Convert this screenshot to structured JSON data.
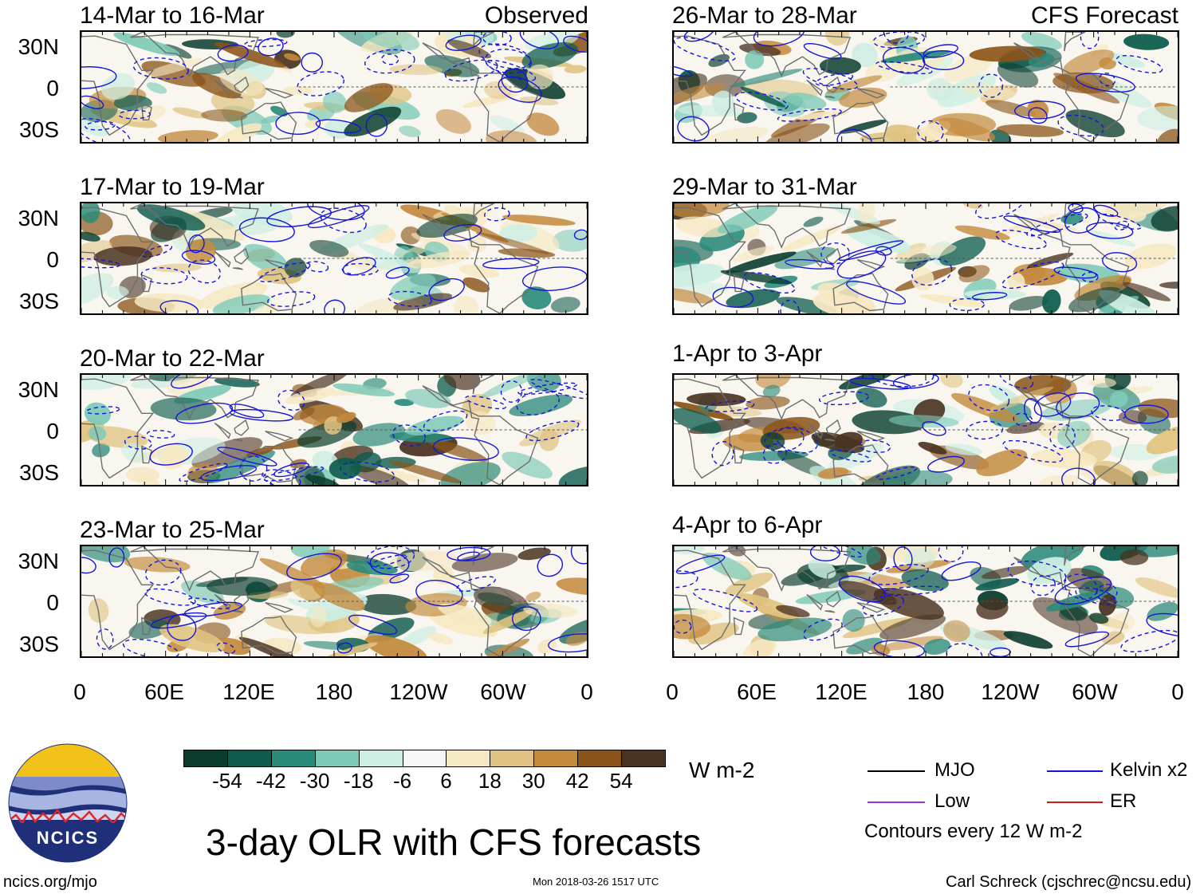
{
  "title": "3-day OLR with CFS forecasts",
  "source_site": "ncics.org/mjo",
  "timestamp": "Mon 2018-03-26 1517 UTC",
  "author": "Carl Schreck (cjschrec@ncsu.edu)",
  "logo_text": "NCICS",
  "units": "W m-2",
  "contour_note": "Contours every 12 W m-2",
  "chart_data": {
    "type": "heatmap",
    "variable": "OLR anomaly",
    "lat_ticks": [
      "30N",
      "0",
      "30S"
    ],
    "lon_ticks": [
      "0",
      "60E",
      "120E",
      "180",
      "120W",
      "60W",
      "0"
    ],
    "observed": {
      "label": "Observed",
      "panels": [
        "14-Mar to 16-Mar",
        "17-Mar to 19-Mar",
        "20-Mar to 22-Mar",
        "23-Mar to 25-Mar"
      ]
    },
    "forecast": {
      "label": "CFS Forecast",
      "panels": [
        "26-Mar to 28-Mar",
        "29-Mar to 31-Mar",
        "1-Apr to 3-Apr",
        "4-Apr to 6-Apr"
      ]
    },
    "colorbar": {
      "labels": [
        "-54",
        "-42",
        "-30",
        "-18",
        "-6",
        "6",
        "18",
        "30",
        "42",
        "54"
      ],
      "colors": [
        "#0a3d2e",
        "#0e5c4e",
        "#2a8a7a",
        "#7ecab8",
        "#cdeee3",
        "#f7f7f7",
        "#f6e8c2",
        "#e0c381",
        "#c48a3e",
        "#8a5418",
        "#4a3220"
      ]
    },
    "legend": [
      {
        "name": "MJO",
        "color": "#000000"
      },
      {
        "name": "Kelvin x2",
        "color": "#1515d8"
      },
      {
        "name": "Low",
        "color": "#9a30e0"
      },
      {
        "name": "ER",
        "color": "#d81515"
      }
    ]
  }
}
